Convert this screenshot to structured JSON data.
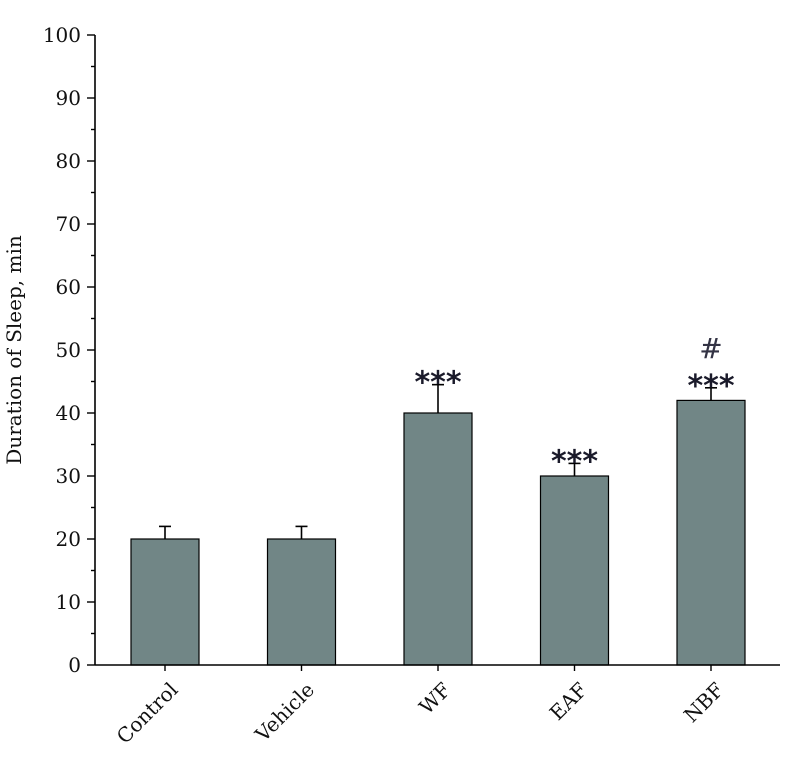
{
  "chart_data": {
    "type": "bar",
    "title": "",
    "xlabel": "",
    "ylabel": "Duration of Sleep, min",
    "ylim": [
      0,
      100
    ],
    "yticks": [
      0,
      10,
      20,
      30,
      40,
      50,
      60,
      70,
      80,
      90,
      100
    ],
    "categories": [
      "Control",
      "Vehicle",
      "WF",
      "EAF",
      "NBF"
    ],
    "values": [
      20,
      20,
      40,
      30,
      42
    ],
    "errors": [
      2,
      2,
      4.5,
      2,
      2
    ],
    "significance": [
      "",
      "",
      "***",
      "***",
      "***"
    ],
    "annotations": [
      "",
      "",
      "",
      "",
      "#"
    ],
    "bar_color": "#718686",
    "grid": false,
    "legend": "none"
  }
}
